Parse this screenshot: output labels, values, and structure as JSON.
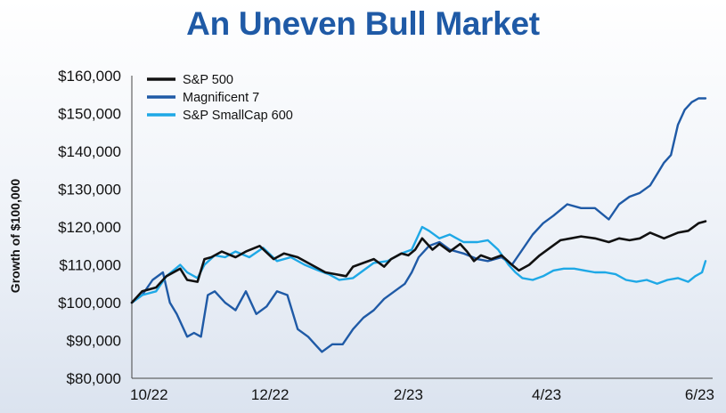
{
  "chart_data": {
    "type": "line",
    "title": "An Uneven Bull Market",
    "xlabel": "",
    "ylabel": "Growth of $100,000",
    "ylim": [
      80000,
      160000
    ],
    "y_ticks": [
      80000,
      90000,
      100000,
      110000,
      120000,
      130000,
      140000,
      150000,
      160000
    ],
    "y_tick_labels": [
      "$80,000",
      "$90,000",
      "$100,000",
      "$110,000",
      "$120,000",
      "$130,000",
      "$140,000",
      "$150,000",
      "$160,000"
    ],
    "x_tick_labels": [
      "10/22",
      "12/22",
      "2/23",
      "4/23",
      "6/23"
    ],
    "x_tick_positions": [
      0,
      2,
      4,
      6,
      8.3
    ],
    "xlim": [
      0,
      8.3
    ],
    "grid": false,
    "legend_position": "top-left",
    "series": [
      {
        "name": "S&P 500",
        "color": "#111111",
        "x": [
          0,
          0.15,
          0.35,
          0.5,
          0.7,
          0.8,
          0.95,
          1.05,
          1.15,
          1.3,
          1.5,
          1.65,
          1.85,
          2.05,
          2.2,
          2.4,
          2.6,
          2.8,
          2.95,
          3.1,
          3.2,
          3.35,
          3.5,
          3.65,
          3.75,
          3.9,
          4.0,
          4.1,
          4.2,
          4.35,
          4.45,
          4.6,
          4.75,
          4.85,
          4.95,
          5.05,
          5.2,
          5.35,
          5.5,
          5.6,
          5.75,
          5.9,
          6.05,
          6.2,
          6.35,
          6.5,
          6.7,
          6.9,
          7.05,
          7.2,
          7.35,
          7.5,
          7.7,
          7.9,
          8.05,
          8.2,
          8.3
        ],
        "values": [
          100000,
          103000,
          104000,
          107000,
          109000,
          106000,
          105500,
          111500,
          112000,
          113500,
          112000,
          113500,
          115000,
          111500,
          113000,
          112000,
          110000,
          108000,
          107500,
          107000,
          109500,
          110500,
          111500,
          109500,
          111500,
          113000,
          112500,
          114000,
          117000,
          114000,
          115500,
          113500,
          115500,
          113500,
          111000,
          112500,
          111500,
          112500,
          110000,
          108500,
          110000,
          112500,
          114500,
          116500,
          117000,
          117500,
          117000,
          116000,
          117000,
          116500,
          117000,
          118500,
          117000,
          118500,
          119000,
          121000,
          121500
        ]
      },
      {
        "name": "Magnificent 7",
        "color": "#1f5aa6",
        "x": [
          0,
          0.15,
          0.3,
          0.45,
          0.55,
          0.65,
          0.8,
          0.9,
          1.0,
          1.1,
          1.2,
          1.35,
          1.5,
          1.65,
          1.8,
          1.95,
          2.1,
          2.25,
          2.4,
          2.55,
          2.65,
          2.75,
          2.9,
          3.05,
          3.2,
          3.35,
          3.5,
          3.65,
          3.8,
          3.95,
          4.05,
          4.15,
          4.3,
          4.45,
          4.6,
          4.8,
          5.0,
          5.15,
          5.35,
          5.5,
          5.65,
          5.8,
          5.95,
          6.1,
          6.3,
          6.5,
          6.7,
          6.9,
          7.05,
          7.2,
          7.35,
          7.5,
          7.6,
          7.7,
          7.8,
          7.9,
          8.0,
          8.1,
          8.2,
          8.3
        ],
        "values": [
          100000,
          102000,
          106000,
          108000,
          100000,
          97000,
          91000,
          92000,
          91000,
          102000,
          103000,
          100000,
          98000,
          103000,
          97000,
          99000,
          103000,
          102000,
          93000,
          91000,
          89000,
          87000,
          89000,
          89000,
          93000,
          96000,
          98000,
          101000,
          103000,
          105000,
          108000,
          112000,
          115000,
          116000,
          114000,
          113000,
          111500,
          111000,
          112000,
          110000,
          114000,
          118000,
          121000,
          123000,
          126000,
          125000,
          125000,
          122000,
          126000,
          128000,
          129000,
          131000,
          134000,
          137000,
          139000,
          147000,
          151000,
          153000,
          154000,
          154000
        ]
      },
      {
        "name": "S&P SmallCap 600",
        "color": "#1ea8e6",
        "x": [
          0,
          0.15,
          0.35,
          0.5,
          0.7,
          0.8,
          0.95,
          1.05,
          1.2,
          1.35,
          1.5,
          1.7,
          1.9,
          2.1,
          2.3,
          2.5,
          2.7,
          2.85,
          3.0,
          3.2,
          3.35,
          3.5,
          3.7,
          3.9,
          4.05,
          4.2,
          4.3,
          4.45,
          4.6,
          4.8,
          5.0,
          5.15,
          5.3,
          5.45,
          5.55,
          5.65,
          5.8,
          5.95,
          6.1,
          6.25,
          6.4,
          6.55,
          6.7,
          6.85,
          7.0,
          7.15,
          7.3,
          7.45,
          7.6,
          7.75,
          7.9,
          8.05,
          8.15,
          8.25,
          8.3
        ],
        "values": [
          100000,
          102000,
          103000,
          107000,
          110000,
          108000,
          106500,
          110000,
          112500,
          112000,
          113500,
          112000,
          114500,
          111000,
          112000,
          110000,
          108500,
          107500,
          106000,
          106500,
          108500,
          110500,
          111000,
          113000,
          114000,
          120000,
          119000,
          117000,
          118000,
          116000,
          116000,
          116500,
          114000,
          110000,
          108000,
          106500,
          106000,
          107000,
          108500,
          109000,
          109000,
          108500,
          108000,
          108000,
          107500,
          106000,
          105500,
          106000,
          105000,
          106000,
          106500,
          105500,
          107000,
          108000,
          111000
        ]
      }
    ]
  }
}
